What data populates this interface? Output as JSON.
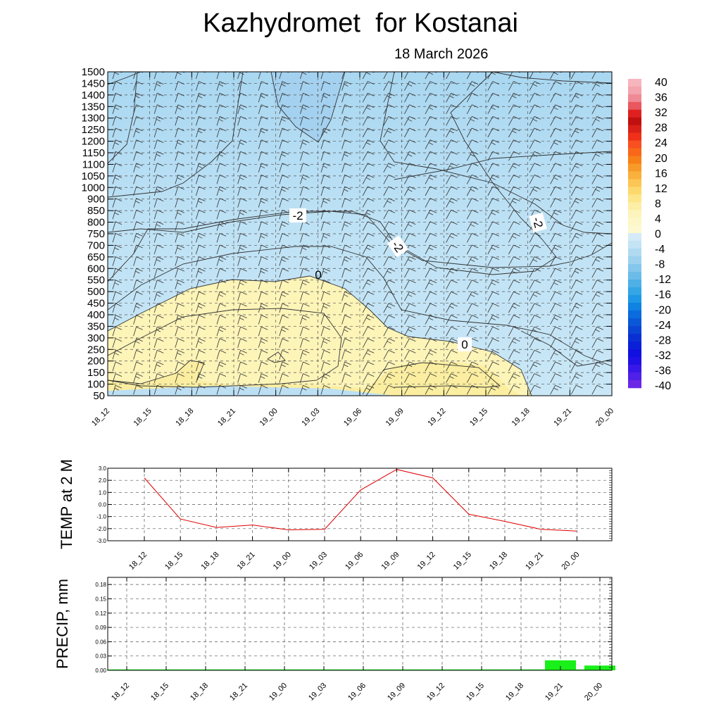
{
  "title": "Kazhydromet  for Kostanai",
  "subtitle": "18 March 2026",
  "chart_data": [
    {
      "type": "heatmap",
      "name": "temperature-height-section",
      "x_labels": [
        "18_12",
        "18_15",
        "18_18",
        "18_21",
        "19_00",
        "19_03",
        "19_06",
        "19_09",
        "19_12",
        "19_15",
        "19_18",
        "19_21",
        "20_00"
      ],
      "y_labels": [
        "1500",
        "1450",
        "1400",
        "1350",
        "1300",
        "1250",
        "1200",
        "1150",
        "1100",
        "1050",
        "1000",
        "900",
        "850",
        "800",
        "750",
        "700",
        "650",
        "600",
        "550",
        "500",
        "450",
        "400",
        "350",
        "300",
        "250",
        "200",
        "150",
        "100",
        "50"
      ],
      "contour_labels": [
        "-2",
        "-2",
        "-2",
        "0",
        "0"
      ],
      "colorbar": {
        "labels": [
          "40",
          "36",
          "32",
          "28",
          "24",
          "20",
          "16",
          "12",
          "8",
          "4",
          "0",
          "-4",
          "-8",
          "-12",
          "-16",
          "-20",
          "-24",
          "-28",
          "-32",
          "-36",
          "-40"
        ]
      }
    },
    {
      "type": "line",
      "ylabel": "TEMP at 2 M",
      "x_labels": [
        "18_12",
        "18_15",
        "18_18",
        "18_21",
        "19_00",
        "19_03",
        "19_06",
        "19_09",
        "19_12",
        "19_15",
        "19_18",
        "19_21",
        "20_00"
      ],
      "values": [
        2.2,
        -1.2,
        -1.9,
        -1.7,
        -2.1,
        -2.05,
        1.2,
        2.9,
        2.2,
        -0.8,
        -1.4,
        -2.05,
        -2.2
      ],
      "ylim": [
        -3.0,
        3.0
      ],
      "y_ticks": [
        "3.0",
        "2.0",
        "1.0",
        "0.0",
        "-1.0",
        "-2.0",
        "-3.0"
      ],
      "color": "#e00000"
    },
    {
      "type": "bar",
      "ylabel": "PRECIP, mm",
      "x_labels": [
        "18_12",
        "18_15",
        "18_18",
        "18_21",
        "19_00",
        "19_03",
        "19_06",
        "19_09",
        "19_12",
        "19_15",
        "19_18",
        "19_21",
        "20_00"
      ],
      "values": [
        0,
        0,
        0,
        0,
        0,
        0,
        0,
        0,
        0,
        0,
        0,
        0.021,
        0.01
      ],
      "ylim": [
        0,
        0.195
      ],
      "y_ticks": [
        "0.18",
        "0.15",
        "0.12",
        "0.09",
        "0.06",
        "0.03",
        "0.00"
      ],
      "color": "#19f019"
    }
  ]
}
